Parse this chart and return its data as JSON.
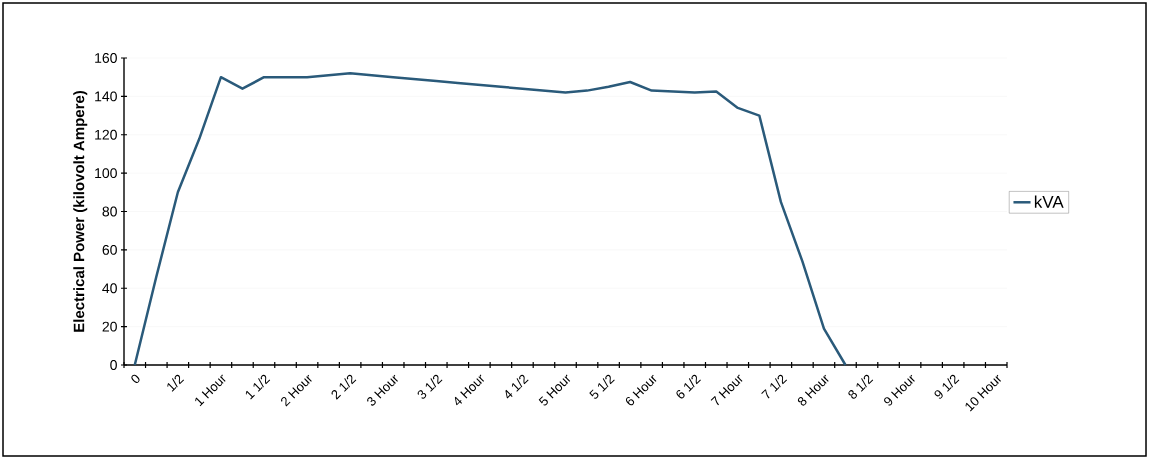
{
  "chart_data": {
    "type": "line",
    "ylabel": "Electrical Power (kilovolt Ampere)",
    "categories": [
      "0",
      null,
      "1/2",
      null,
      "1 Hour",
      null,
      "1 1/2",
      null,
      "2 Hour",
      null,
      "2 1/2",
      null,
      "3 Hour",
      null,
      "3 1/2",
      null,
      "4 Hour",
      null,
      "4 1/2",
      null,
      "5 Hour",
      null,
      "5 1/2",
      null,
      "6 Hour",
      null,
      "6 1/2",
      null,
      "7 Hour",
      null,
      "7 1/2",
      null,
      "8 Hour",
      null,
      "8 1/2",
      null,
      "9 Hour",
      null,
      "9 1/2",
      null,
      "10 Hour"
    ],
    "series": [
      {
        "name": "kVA",
        "color": "#2a5a7a",
        "values": [
          0,
          46,
          90,
          118,
          150,
          144,
          150,
          150,
          150,
          151,
          152,
          151,
          150,
          149,
          148,
          147,
          146,
          145,
          144,
          143,
          142,
          143,
          145,
          147.5,
          143,
          142.5,
          142,
          142.5,
          134,
          130,
          85,
          54,
          19,
          0,
          null,
          null,
          null,
          null,
          null,
          null,
          null
        ]
      }
    ],
    "ylim": [
      0,
      160
    ],
    "yticks": [
      0,
      20,
      40,
      60,
      80,
      100,
      120,
      140,
      160
    ],
    "grid": "y",
    "legend": "right"
  }
}
